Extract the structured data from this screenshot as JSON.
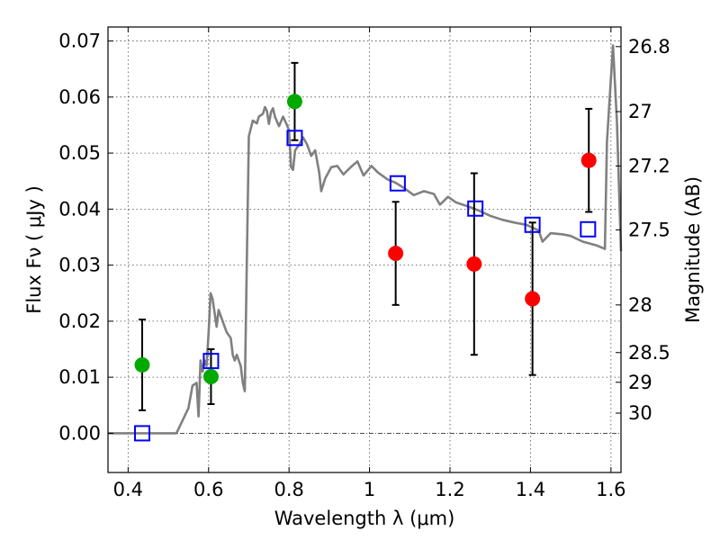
{
  "chart_data": {
    "type": "scatter",
    "xlabel": "Wavelength  λ (μm)",
    "ylabel": "Flux  Fν  ( μJy )",
    "ylabel_right": "Magnitude (AB)",
    "xlim": [
      0.35,
      1.625
    ],
    "ylim": [
      -0.007,
      0.0725
    ],
    "grid": true,
    "x_ticks": [
      0.4,
      0.6,
      0.8,
      1.0,
      1.2,
      1.4,
      1.6
    ],
    "x_tick_labels": [
      "0.4",
      "0.6",
      "0.8",
      "1",
      "1.2",
      "1.4",
      "1.6"
    ],
    "y_ticks": [
      0.0,
      0.01,
      0.02,
      0.03,
      0.04,
      0.05,
      0.06,
      0.07
    ],
    "y_tick_labels": [
      "0.00",
      "0.01",
      "0.02",
      "0.03",
      "0.04",
      "0.05",
      "0.06",
      "0.07"
    ],
    "right_ticks": [
      {
        "label": "26.8",
        "flux": 0.069
      },
      {
        "label": "27",
        "flux": 0.0574
      },
      {
        "label": "27.2",
        "flux": 0.0477
      },
      {
        "label": "27.5",
        "flux": 0.0363
      },
      {
        "label": "28",
        "flux": 0.0229
      },
      {
        "label": "28.5",
        "flux": 0.0144
      },
      {
        "label": "29",
        "flux": 0.0091
      },
      {
        "label": "30",
        "flux": 0.0036
      }
    ],
    "series": [
      {
        "marker": "circle",
        "color": "#00aa00",
        "points": [
          {
            "x": 0.435,
            "y": 0.0122,
            "err": 0.0081
          },
          {
            "x": 0.606,
            "y": 0.0101,
            "err": 0.0049
          },
          {
            "x": 0.814,
            "y": 0.0592,
            "err": 0.0069
          }
        ]
      },
      {
        "marker": "circle",
        "color": "#ff0000",
        "points": [
          {
            "x": 1.065,
            "y": 0.0321,
            "err": 0.0092
          },
          {
            "x": 1.26,
            "y": 0.0302,
            "err": 0.0162
          },
          {
            "x": 1.405,
            "y": 0.024,
            "err": 0.0136
          },
          {
            "x": 1.545,
            "y": 0.0487,
            "err": 0.0092
          }
        ]
      },
      {
        "marker": "open-square",
        "color": "#0000ff",
        "points": [
          {
            "x": 0.435,
            "y": 0.0
          },
          {
            "x": 0.606,
            "y": 0.0129
          },
          {
            "x": 0.814,
            "y": 0.0527
          },
          {
            "x": 1.07,
            "y": 0.0446
          },
          {
            "x": 1.263,
            "y": 0.0401
          },
          {
            "x": 1.405,
            "y": 0.0372
          },
          {
            "x": 1.543,
            "y": 0.0364
          }
        ]
      },
      {
        "marker": "line",
        "color": "#808080",
        "points": [
          {
            "x": 0.35,
            "y": 0.0
          },
          {
            "x": 0.52,
            "y": 0.0
          },
          {
            "x": 0.53,
            "y": 0.0015
          },
          {
            "x": 0.55,
            "y": 0.0045
          },
          {
            "x": 0.56,
            "y": 0.0085
          },
          {
            "x": 0.57,
            "y": 0.009
          },
          {
            "x": 0.575,
            "y": 0.003
          },
          {
            "x": 0.58,
            "y": 0.013
          },
          {
            "x": 0.585,
            "y": 0.011
          },
          {
            "x": 0.59,
            "y": 0.013
          },
          {
            "x": 0.595,
            "y": 0.012
          },
          {
            "x": 0.6,
            "y": 0.018
          },
          {
            "x": 0.605,
            "y": 0.025
          },
          {
            "x": 0.61,
            "y": 0.024
          },
          {
            "x": 0.62,
            "y": 0.019
          },
          {
            "x": 0.625,
            "y": 0.022
          },
          {
            "x": 0.635,
            "y": 0.02
          },
          {
            "x": 0.645,
            "y": 0.018
          },
          {
            "x": 0.655,
            "y": 0.017
          },
          {
            "x": 0.66,
            "y": 0.014
          },
          {
            "x": 0.665,
            "y": 0.013
          },
          {
            "x": 0.67,
            "y": 0.014
          },
          {
            "x": 0.675,
            "y": 0.013
          },
          {
            "x": 0.68,
            "y": 0.012
          },
          {
            "x": 0.685,
            "y": 0.009
          },
          {
            "x": 0.69,
            "y": 0.0075
          },
          {
            "x": 0.695,
            "y": 0.03
          },
          {
            "x": 0.7,
            "y": 0.053
          },
          {
            "x": 0.71,
            "y": 0.0558
          },
          {
            "x": 0.72,
            "y": 0.0553
          },
          {
            "x": 0.725,
            "y": 0.0565
          },
          {
            "x": 0.735,
            "y": 0.057
          },
          {
            "x": 0.74,
            "y": 0.0582
          },
          {
            "x": 0.745,
            "y": 0.0575
          },
          {
            "x": 0.75,
            "y": 0.0552
          },
          {
            "x": 0.755,
            "y": 0.0573
          },
          {
            "x": 0.76,
            "y": 0.058
          },
          {
            "x": 0.765,
            "y": 0.0565
          },
          {
            "x": 0.775,
            "y": 0.0548
          },
          {
            "x": 0.785,
            "y": 0.0565
          },
          {
            "x": 0.795,
            "y": 0.055
          },
          {
            "x": 0.8,
            "y": 0.054
          },
          {
            "x": 0.805,
            "y": 0.0475
          },
          {
            "x": 0.81,
            "y": 0.047
          },
          {
            "x": 0.815,
            "y": 0.0505
          },
          {
            "x": 0.825,
            "y": 0.0515
          },
          {
            "x": 0.835,
            "y": 0.0528
          },
          {
            "x": 0.845,
            "y": 0.0515
          },
          {
            "x": 0.855,
            "y": 0.0495
          },
          {
            "x": 0.865,
            "y": 0.0505
          },
          {
            "x": 0.875,
            "y": 0.0465
          },
          {
            "x": 0.88,
            "y": 0.0432
          },
          {
            "x": 0.89,
            "y": 0.0455
          },
          {
            "x": 0.905,
            "y": 0.0475
          },
          {
            "x": 0.92,
            "y": 0.0477
          },
          {
            "x": 0.935,
            "y": 0.0462
          },
          {
            "x": 0.955,
            "y": 0.0476
          },
          {
            "x": 0.97,
            "y": 0.0485
          },
          {
            "x": 0.985,
            "y": 0.046
          },
          {
            "x": 1.005,
            "y": 0.0477
          },
          {
            "x": 1.02,
            "y": 0.0466
          },
          {
            "x": 1.045,
            "y": 0.0453
          },
          {
            "x": 1.065,
            "y": 0.0447
          },
          {
            "x": 1.085,
            "y": 0.0438
          },
          {
            "x": 1.11,
            "y": 0.0425
          },
          {
            "x": 1.135,
            "y": 0.0432
          },
          {
            "x": 1.16,
            "y": 0.0427
          },
          {
            "x": 1.175,
            "y": 0.0408
          },
          {
            "x": 1.195,
            "y": 0.0422
          },
          {
            "x": 1.215,
            "y": 0.0412
          },
          {
            "x": 1.24,
            "y": 0.0406
          },
          {
            "x": 1.27,
            "y": 0.0398
          },
          {
            "x": 1.3,
            "y": 0.0388
          },
          {
            "x": 1.33,
            "y": 0.0381
          },
          {
            "x": 1.36,
            "y": 0.0376
          },
          {
            "x": 1.39,
            "y": 0.0372
          },
          {
            "x": 1.42,
            "y": 0.0362
          },
          {
            "x": 1.43,
            "y": 0.0342
          },
          {
            "x": 1.45,
            "y": 0.0357
          },
          {
            "x": 1.48,
            "y": 0.0355
          },
          {
            "x": 1.5,
            "y": 0.0352
          },
          {
            "x": 1.53,
            "y": 0.0342
          },
          {
            "x": 1.565,
            "y": 0.0335
          },
          {
            "x": 1.585,
            "y": 0.0329
          },
          {
            "x": 1.59,
            "y": 0.052
          },
          {
            "x": 1.605,
            "y": 0.0692
          },
          {
            "x": 1.615,
            "y": 0.0555
          },
          {
            "x": 1.625,
            "y": 0.0325
          }
        ]
      }
    ]
  }
}
